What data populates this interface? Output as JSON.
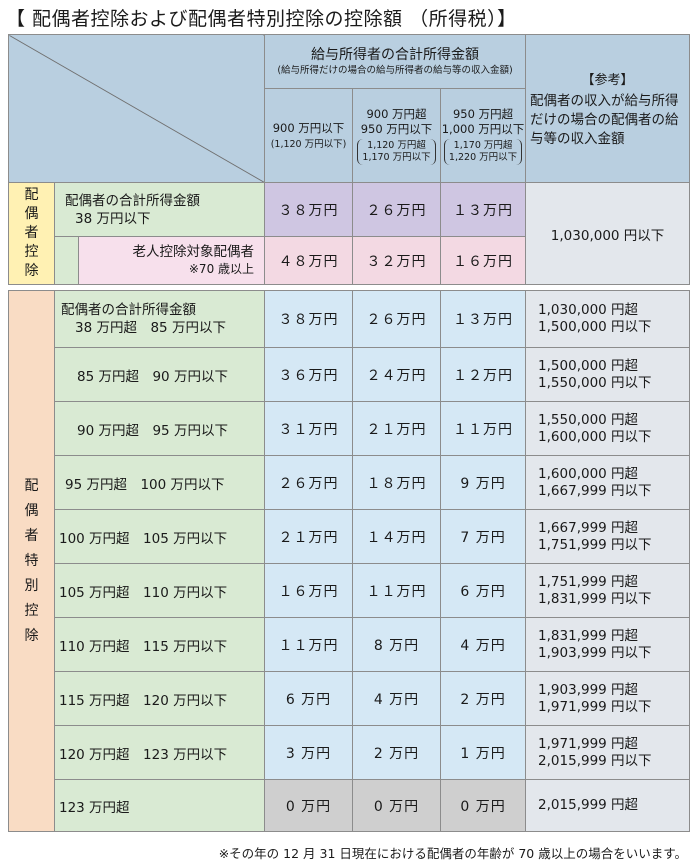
{
  "title": "【 配偶者控除および配偶者特別控除の控除額 （所得税）】",
  "header": {
    "group_title": "給与所得者の合計所得金額",
    "group_sub": "(給与所得だけの場合の給与所得者の給与等の収入金額)",
    "col1_main": "900 万円以下",
    "col1_sub": "(1,120 万円以下)",
    "col2_main1": "900 万円超",
    "col2_main2": "950 万円以下",
    "col2_sub1": "1,120 万円超",
    "col2_sub2": "1,170 万円以下",
    "col3_main1": "950 万円超",
    "col3_main2": "1,000 万円以下",
    "col3_sub1": "1,170 万円超",
    "col3_sub2": "1,220 万円以下",
    "ref_title": "【参考】",
    "ref_text": "配偶者の収入が給与所得だけの場合の配偶者の給与等の収入金額"
  },
  "spouse_deduction": {
    "label": "配偶者控除",
    "row1_label_line1": "配偶者の合計所得金額",
    "row1_label_line2": "38 万円以下",
    "row1_values": [
      "３８万円",
      "２６万円",
      "１３万円"
    ],
    "row2_label_line1": "老人控除対象配偶者",
    "row2_label_line2": "※70 歳以上",
    "row2_values": [
      "４８万円",
      "３２万円",
      "１６万円"
    ],
    "ref": "1,030,000 円以下"
  },
  "special_deduction": {
    "label": "配偶者特別控除",
    "first_label_line1": "配偶者の合計所得金額",
    "rows": [
      {
        "range": "38 万円超　85 万円以下",
        "values": [
          "３８万円",
          "２６万円",
          "１３万円"
        ],
        "ref1": "1,030,000 円超",
        "ref2": "1,500,000 円以下"
      },
      {
        "range": "85 万円超　90 万円以下",
        "values": [
          "３６万円",
          "２４万円",
          "１２万円"
        ],
        "ref1": "1,500,000 円超",
        "ref2": "1,550,000 円以下"
      },
      {
        "range": "90 万円超　95 万円以下",
        "values": [
          "３１万円",
          "２１万円",
          "１１万円"
        ],
        "ref1": "1,550,000 円超",
        "ref2": "1,600,000 円以下"
      },
      {
        "range": "95 万円超　100 万円以下",
        "values": [
          "２６万円",
          "１８万円",
          "9 万円"
        ],
        "ref1": "1,600,000 円超",
        "ref2": "1,667,999 円以下"
      },
      {
        "range": "100 万円超　105 万円以下",
        "values": [
          "２１万円",
          "１４万円",
          "7 万円"
        ],
        "ref1": "1,667,999 円超",
        "ref2": "1,751,999 円以下"
      },
      {
        "range": "105 万円超　110 万円以下",
        "values": [
          "１６万円",
          "１１万円",
          "6 万円"
        ],
        "ref1": "1,751,999 円超",
        "ref2": "1,831,999 円以下"
      },
      {
        "range": "110 万円超　115 万円以下",
        "values": [
          "１１万円",
          "8 万円",
          "4 万円"
        ],
        "ref1": "1,831,999 円超",
        "ref2": "1,903,999 円以下"
      },
      {
        "range": "115 万円超　120 万円以下",
        "values": [
          "6 万円",
          "4 万円",
          "2 万円"
        ],
        "ref1": "1,903,999 円超",
        "ref2": "1,971,999 円以下"
      },
      {
        "range": "120 万円超　123 万円以下",
        "values": [
          "3 万円",
          "2 万円",
          "1 万円"
        ],
        "ref1": "1,971,999 円超",
        "ref2": "2,015,999 円以下"
      },
      {
        "range": "123 万円超",
        "values": [
          "0 万円",
          "0 万円",
          "0 万円"
        ],
        "ref1": "2,015,999 円超",
        "ref2": ""
      }
    ]
  },
  "footnote": "※その年の 12 月 31 日現在における配偶者の年齢が 70 歳以上の場合をいいます。"
}
